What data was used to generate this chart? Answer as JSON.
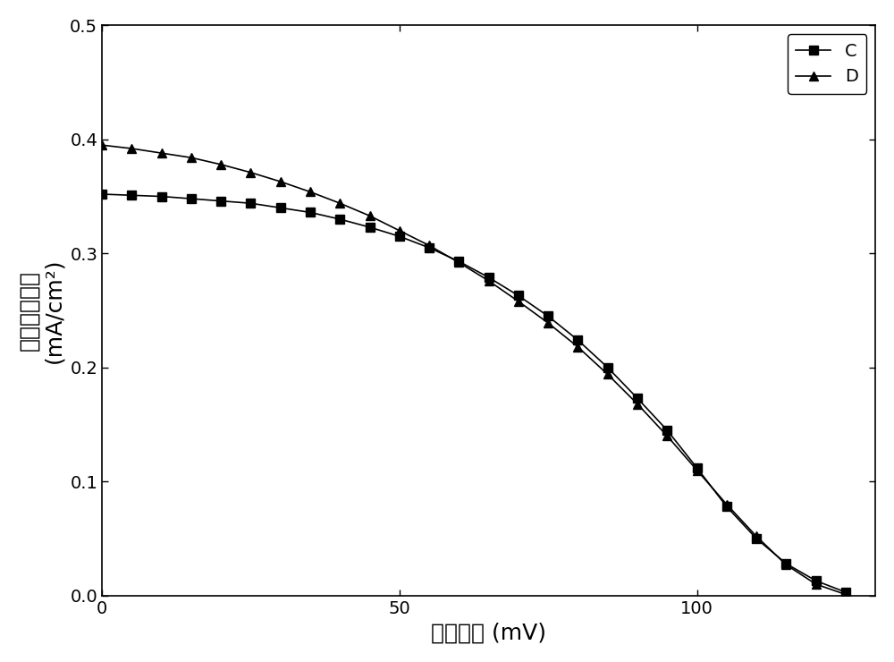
{
  "title": "",
  "xlabel": "开路电压 (mV)",
  "ylabel_chinese": "短路电流密度",
  "ylabel_unit": "(mA/cm²)",
  "xlim": [
    0,
    130
  ],
  "ylim": [
    0,
    0.5
  ],
  "xticks": [
    0,
    50,
    100
  ],
  "yticks": [
    0.0,
    0.1,
    0.2,
    0.3,
    0.4,
    0.5
  ],
  "series_C_x": [
    0,
    5,
    10,
    15,
    20,
    25,
    30,
    35,
    40,
    45,
    50,
    55,
    60,
    65,
    70,
    75,
    80,
    85,
    90,
    95,
    100,
    105,
    110,
    115,
    120,
    125
  ],
  "series_C_y": [
    0.352,
    0.351,
    0.35,
    0.348,
    0.346,
    0.344,
    0.34,
    0.336,
    0.33,
    0.323,
    0.315,
    0.305,
    0.293,
    0.279,
    0.263,
    0.245,
    0.224,
    0.2,
    0.173,
    0.145,
    0.112,
    0.078,
    0.05,
    0.028,
    0.013,
    0.003
  ],
  "series_D_x": [
    0,
    5,
    10,
    15,
    20,
    25,
    30,
    35,
    40,
    45,
    50,
    55,
    60,
    65,
    70,
    75,
    80,
    85,
    90,
    95,
    100,
    105,
    110,
    115,
    120,
    125
  ],
  "series_D_y": [
    0.395,
    0.392,
    0.388,
    0.384,
    0.378,
    0.371,
    0.363,
    0.354,
    0.344,
    0.333,
    0.32,
    0.307,
    0.292,
    0.276,
    0.258,
    0.239,
    0.218,
    0.194,
    0.168,
    0.14,
    0.11,
    0.08,
    0.052,
    0.027,
    0.01,
    0.001
  ],
  "line_color": "#000000",
  "marker_C": "s",
  "marker_D": "^",
  "marker_size": 7,
  "linewidth": 1.2,
  "legend_loc": "upper right",
  "legend_fontsize": 14,
  "xlabel_fontsize": 18,
  "ylabel_fontsize": 18,
  "tick_fontsize": 14,
  "background_color": "#ffffff"
}
